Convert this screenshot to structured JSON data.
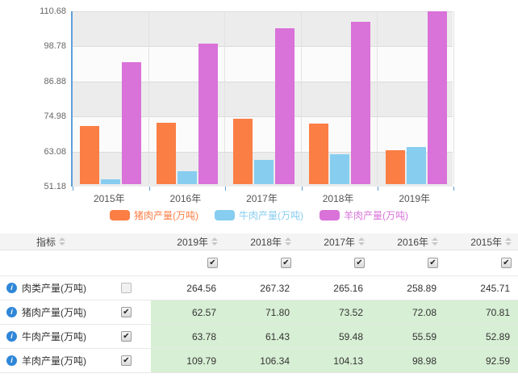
{
  "colors": {
    "pork": "#fb7e45",
    "beef": "#87cdf0",
    "mutton": "#d972d9",
    "axis": "#5e9fd8",
    "highlight_cell": "#d7efd4",
    "header_bg": "#f4f4f4",
    "info_icon": "#2f86d8"
  },
  "chart_data": [
    {
      "type": "bar",
      "title": "",
      "xlabel": "",
      "ylabel": "",
      "categories": [
        "2015年",
        "2016年",
        "2017年",
        "2018年",
        "2019年"
      ],
      "series": [
        {
          "name": "猪肉产量(万吨)",
          "color": "#fb7e45",
          "values": [
            70.81,
            72.08,
            73.52,
            71.8,
            62.57
          ]
        },
        {
          "name": "牛肉产量(万吨)",
          "color": "#87cdf0",
          "values": [
            52.89,
            55.59,
            59.48,
            61.43,
            63.78
          ]
        },
        {
          "name": "羊肉产量(万吨)",
          "color": "#d972d9",
          "values": [
            92.59,
            98.98,
            104.13,
            106.34,
            109.79
          ]
        }
      ],
      "ylim": [
        51.18,
        110.68
      ],
      "y_ticks": [
        "110.68",
        "98.78",
        "86.88",
        "74.98",
        "63.08",
        "51.18"
      ],
      "grid": true,
      "legend_position": "bottom"
    },
    {
      "type": "table",
      "header_label": "指标",
      "year_columns": [
        "2019年",
        "2018年",
        "2017年",
        "2016年",
        "2015年"
      ],
      "year_checkboxes": [
        true,
        true,
        true,
        true,
        true
      ],
      "rows": [
        {
          "label": "肉类产量(万吨)",
          "checked": false,
          "highlight": false,
          "values": [
            "264.56",
            "267.32",
            "265.16",
            "258.89",
            "245.71"
          ]
        },
        {
          "label": "猪肉产量(万吨)",
          "checked": true,
          "highlight": true,
          "values": [
            "62.57",
            "71.80",
            "73.52",
            "72.08",
            "70.81"
          ]
        },
        {
          "label": "牛肉产量(万吨)",
          "checked": true,
          "highlight": true,
          "values": [
            "63.78",
            "61.43",
            "59.48",
            "55.59",
            "52.89"
          ]
        },
        {
          "label": "羊肉产量(万吨)",
          "checked": true,
          "highlight": true,
          "values": [
            "109.79",
            "106.34",
            "104.13",
            "98.98",
            "92.59"
          ]
        }
      ],
      "checkmark": "✔",
      "info_glyph": "i"
    }
  ]
}
